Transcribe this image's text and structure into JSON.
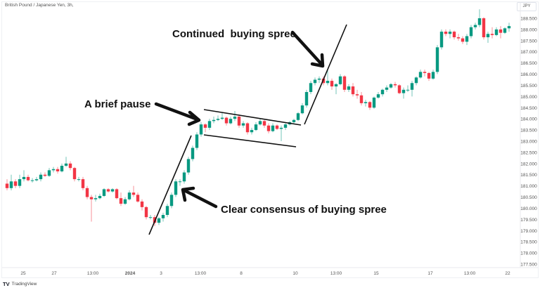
{
  "header": {
    "title": "British Pound / Japanese Yen, 3h,",
    "currency": "JPY"
  },
  "footer": {
    "brand": "TradingView",
    "logo": "TV"
  },
  "colors": {
    "up": "#089981",
    "down": "#f23645",
    "annotation": "#111111"
  },
  "annotations": {
    "continued": "Continued  buying spree",
    "pause": "A brief pause",
    "consensus": "Clear consensus of buying spree"
  },
  "chart_data": {
    "type": "candlestick",
    "title": "British Pound / Japanese Yen, 3h,",
    "ylabel": "JPY",
    "ylim": [
      177.5,
      188.5
    ],
    "grid": false,
    "y_ticks": [
      "188.500",
      "188.000",
      "187.500",
      "187.000",
      "186.500",
      "186.000",
      "185.500",
      "185.000",
      "184.500",
      "184.000",
      "183.500",
      "183.000",
      "182.500",
      "182.000",
      "181.500",
      "181.000",
      "180.500",
      "180.000",
      "179.500",
      "179.000",
      "178.500",
      "178.000",
      "177.500"
    ],
    "x_ticks": [
      "25",
      "27",
      "13:00",
      "2024",
      "3",
      "13:00",
      "8",
      "10",
      "13:00",
      "15",
      "17",
      "13:00",
      "22"
    ],
    "candles_ohlc": [
      [
        181.1,
        181.3,
        180.8,
        180.9
      ],
      [
        180.9,
        181.5,
        180.8,
        181.2
      ],
      [
        181.2,
        181.3,
        180.9,
        181.0
      ],
      [
        181.0,
        181.5,
        180.9,
        181.3
      ],
      [
        181.3,
        181.7,
        181.2,
        181.4
      ],
      [
        181.4,
        181.5,
        181.2,
        181.25
      ],
      [
        181.25,
        181.35,
        181.15,
        181.25
      ],
      [
        181.25,
        181.4,
        181.2,
        181.3
      ],
      [
        181.3,
        181.6,
        181.2,
        181.5
      ],
      [
        181.5,
        181.6,
        181.4,
        181.45
      ],
      [
        181.45,
        181.8,
        181.4,
        181.7
      ],
      [
        181.7,
        181.85,
        181.6,
        181.75
      ],
      [
        181.75,
        181.85,
        181.55,
        181.65
      ],
      [
        181.65,
        182.0,
        181.6,
        181.9
      ],
      [
        181.9,
        182.3,
        181.85,
        182.0
      ],
      [
        182.0,
        182.1,
        181.7,
        181.8
      ],
      [
        181.8,
        181.85,
        181.2,
        181.3
      ],
      [
        181.3,
        181.4,
        181.2,
        181.3
      ],
      [
        181.3,
        181.4,
        180.8,
        180.9
      ],
      [
        180.9,
        181.0,
        180.4,
        180.5
      ],
      [
        180.5,
        180.6,
        179.4,
        180.4
      ],
      [
        180.4,
        180.6,
        180.3,
        180.45
      ],
      [
        180.45,
        180.65,
        180.4,
        180.55
      ],
      [
        180.55,
        180.9,
        180.5,
        180.85
      ],
      [
        180.85,
        180.9,
        180.7,
        180.75
      ],
      [
        180.75,
        180.9,
        180.7,
        180.85
      ],
      [
        180.85,
        180.9,
        180.4,
        180.45
      ],
      [
        180.45,
        180.7,
        180.1,
        180.2
      ],
      [
        180.2,
        180.5,
        180.15,
        180.4
      ],
      [
        180.4,
        180.8,
        180.35,
        180.7
      ],
      [
        180.7,
        181.0,
        180.5,
        180.6
      ],
      [
        180.6,
        180.7,
        180.25,
        180.3
      ],
      [
        180.3,
        180.4,
        179.9,
        180.05
      ],
      [
        180.05,
        180.1,
        179.5,
        179.6
      ],
      [
        179.6,
        179.7,
        179.5,
        179.6
      ],
      [
        179.6,
        179.7,
        179.2,
        179.35
      ],
      [
        179.35,
        179.6,
        179.25,
        179.55
      ],
      [
        179.55,
        179.8,
        179.4,
        179.7
      ],
      [
        179.7,
        180.2,
        179.6,
        180.1
      ],
      [
        180.1,
        180.7,
        180.0,
        180.6
      ],
      [
        180.6,
        181.3,
        180.5,
        181.2
      ],
      [
        181.2,
        181.3,
        181.0,
        181.2
      ],
      [
        181.2,
        181.7,
        181.1,
        181.6
      ],
      [
        181.6,
        182.3,
        181.5,
        182.2
      ],
      [
        182.2,
        182.8,
        182.1,
        182.7
      ],
      [
        182.7,
        183.4,
        182.6,
        183.3
      ],
      [
        183.3,
        183.85,
        183.2,
        183.75
      ],
      [
        183.75,
        183.8,
        183.4,
        183.6
      ],
      [
        183.6,
        184.0,
        183.5,
        183.9
      ],
      [
        183.9,
        184.1,
        183.8,
        183.95
      ],
      [
        183.95,
        184.15,
        183.9,
        184.0
      ],
      [
        184.0,
        184.3,
        183.95,
        184.05
      ],
      [
        184.05,
        184.1,
        183.7,
        183.8
      ],
      [
        183.8,
        184.1,
        183.75,
        184.0
      ],
      [
        184.0,
        184.35,
        183.9,
        184.1
      ],
      [
        184.1,
        184.2,
        183.6,
        183.7
      ],
      [
        183.7,
        183.9,
        183.6,
        183.8
      ],
      [
        183.8,
        183.85,
        183.3,
        183.4
      ],
      [
        183.4,
        183.6,
        183.3,
        183.5
      ],
      [
        183.5,
        183.85,
        183.45,
        183.75
      ],
      [
        183.75,
        184.0,
        183.7,
        183.9
      ],
      [
        183.9,
        183.95,
        183.6,
        183.7
      ],
      [
        183.7,
        183.8,
        183.35,
        183.45
      ],
      [
        183.45,
        183.8,
        183.4,
        183.7
      ],
      [
        183.7,
        183.75,
        183.5,
        183.55
      ],
      [
        183.55,
        183.7,
        183.0,
        183.6
      ],
      [
        183.6,
        183.8,
        183.5,
        183.75
      ],
      [
        183.75,
        183.9,
        183.7,
        183.85
      ],
      [
        183.85,
        184.0,
        183.8,
        183.95
      ],
      [
        183.95,
        184.3,
        183.9,
        184.25
      ],
      [
        184.25,
        184.7,
        184.2,
        184.6
      ],
      [
        184.6,
        185.3,
        184.5,
        185.2
      ],
      [
        185.2,
        185.7,
        185.1,
        185.6
      ],
      [
        185.6,
        185.85,
        185.5,
        185.75
      ],
      [
        185.75,
        185.9,
        185.6,
        185.8
      ],
      [
        185.8,
        185.9,
        185.5,
        185.6
      ],
      [
        185.6,
        186.2,
        185.5,
        185.7
      ],
      [
        185.7,
        185.8,
        185.3,
        185.45
      ],
      [
        185.45,
        185.6,
        185.1,
        185.55
      ],
      [
        185.55,
        186.0,
        185.5,
        185.9
      ],
      [
        185.9,
        185.95,
        185.2,
        185.3
      ],
      [
        185.3,
        185.55,
        185.2,
        185.45
      ],
      [
        185.45,
        185.6,
        185.0,
        185.1
      ],
      [
        185.1,
        185.3,
        184.9,
        185.05
      ],
      [
        185.05,
        185.2,
        184.6,
        184.7
      ],
      [
        184.7,
        184.85,
        184.55,
        184.75
      ],
      [
        184.75,
        184.8,
        184.4,
        184.5
      ],
      [
        184.5,
        185.0,
        184.45,
        184.95
      ],
      [
        184.95,
        185.2,
        184.9,
        185.1
      ],
      [
        185.1,
        185.35,
        185.0,
        185.3
      ],
      [
        185.3,
        185.5,
        185.2,
        185.4
      ],
      [
        185.4,
        185.6,
        185.35,
        185.55
      ],
      [
        185.55,
        185.65,
        185.4,
        185.5
      ],
      [
        185.5,
        185.55,
        185.1,
        185.15
      ],
      [
        185.15,
        185.4,
        184.9,
        185.3
      ],
      [
        185.3,
        185.5,
        185.2,
        185.3
      ],
      [
        185.3,
        185.7,
        185.0,
        185.6
      ],
      [
        185.6,
        185.9,
        185.5,
        185.85
      ],
      [
        185.85,
        186.2,
        185.8,
        186.1
      ],
      [
        186.1,
        186.2,
        185.9,
        186.05
      ],
      [
        186.05,
        186.1,
        185.7,
        185.8
      ],
      [
        185.8,
        186.2,
        185.75,
        186.1
      ],
      [
        186.1,
        187.3,
        186.0,
        187.2
      ],
      [
        187.2,
        188.0,
        187.1,
        187.9
      ],
      [
        187.9,
        188.0,
        187.7,
        187.8
      ],
      [
        187.8,
        188.0,
        187.6,
        187.9
      ],
      [
        187.9,
        187.95,
        187.55,
        187.65
      ],
      [
        187.65,
        187.8,
        187.5,
        187.6
      ],
      [
        187.6,
        187.7,
        187.35,
        187.45
      ],
      [
        187.45,
        187.8,
        187.3,
        187.7
      ],
      [
        187.7,
        188.2,
        187.6,
        188.1
      ],
      [
        188.1,
        188.3,
        188.0,
        188.2
      ],
      [
        188.2,
        188.9,
        188.1,
        188.5
      ],
      [
        188.5,
        188.55,
        187.55,
        187.65
      ],
      [
        187.65,
        187.9,
        187.4,
        187.8
      ],
      [
        187.8,
        188.1,
        187.6,
        187.75
      ],
      [
        187.75,
        188.1,
        187.7,
        188.0
      ],
      [
        188.0,
        188.15,
        187.6,
        187.85
      ],
      [
        187.85,
        188.1,
        187.8,
        188.05
      ],
      [
        188.05,
        188.3,
        187.9,
        188.15
      ]
    ]
  }
}
